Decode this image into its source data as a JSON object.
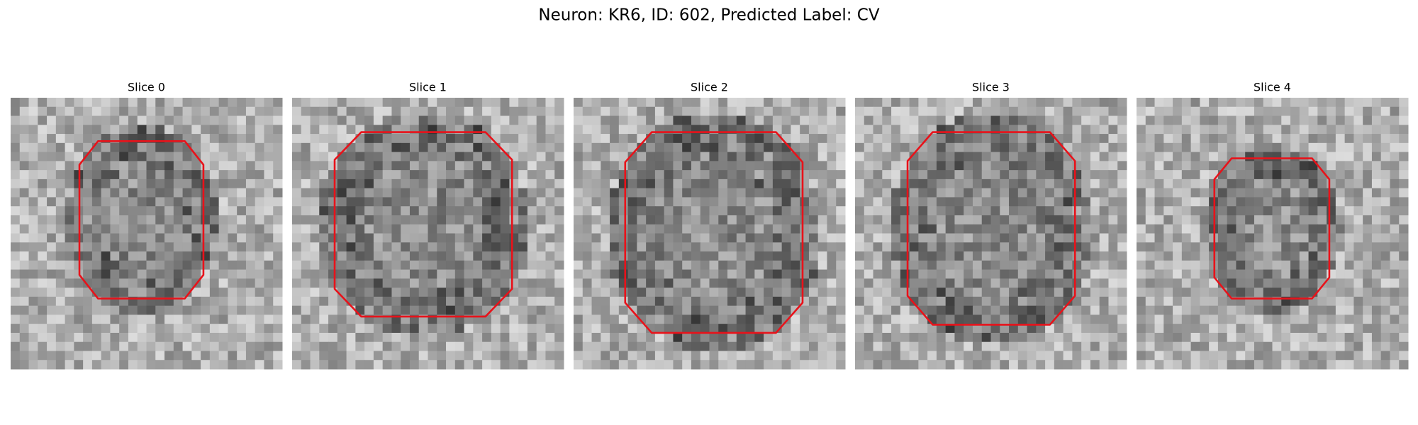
{
  "title": "Neuron: KR6, ID: 602, Predicted Label: CV",
  "panels": [
    {
      "title": "Slice 0"
    },
    {
      "title": "Slice 1"
    },
    {
      "title": "Slice 2"
    },
    {
      "title": "Slice 3"
    },
    {
      "title": "Slice 4"
    }
  ]
}
